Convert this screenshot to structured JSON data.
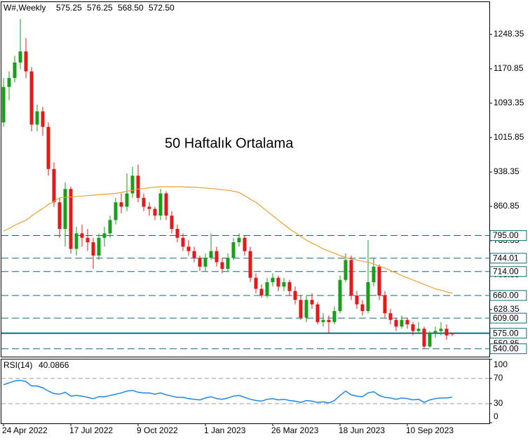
{
  "chart_data": {
    "type": "candlestick",
    "header": {
      "symbol": "W#,Weekly",
      "values": [
        "575.25",
        "576.25",
        "568.50",
        "572.50"
      ]
    },
    "annotation": "50 Haftalık Ortalama",
    "categories": [
      "24 Apr 2022",
      null,
      null,
      null,
      null,
      null,
      null,
      null,
      null,
      null,
      null,
      null,
      "17 Jul 2022",
      null,
      null,
      null,
      null,
      null,
      null,
      null,
      null,
      null,
      null,
      null,
      "9 Oct 2022",
      null,
      null,
      null,
      null,
      null,
      null,
      null,
      null,
      null,
      null,
      null,
      "1 Jan 2023",
      null,
      null,
      null,
      null,
      null,
      null,
      null,
      null,
      null,
      null,
      null,
      "26 Mar 2023",
      null,
      null,
      null,
      null,
      null,
      null,
      null,
      null,
      null,
      null,
      null,
      "18 Jun 2023",
      null,
      null,
      null,
      null,
      null,
      null,
      null,
      null,
      null,
      null,
      null,
      "10 Sep 2023",
      null,
      null,
      null,
      null,
      null,
      null,
      null,
      null
    ],
    "open": [
      1050,
      1130,
      1150,
      1185,
      1210,
      1165,
      1045,
      1075,
      1040,
      945,
      870,
      810,
      900,
      765,
      800,
      790,
      780,
      750,
      790,
      800,
      830,
      870,
      860,
      890,
      930,
      880,
      860,
      855,
      840,
      890,
      840,
      810,
      790,
      770,
      760,
      745,
      725,
      745,
      760,
      735,
      720,
      745,
      780,
      790,
      760,
      700,
      675,
      660,
      690,
      700,
      680,
      690,
      670,
      650,
      610,
      650,
      640,
      600,
      605,
      600,
      625,
      695,
      740,
      660,
      640,
      625,
      690,
      725,
      660,
      620,
      605,
      590,
      605,
      595,
      580,
      585,
      545,
      575,
      580,
      585,
      575.25
    ],
    "high": [
      1150,
      1165,
      1200,
      1283,
      1240,
      1175,
      1090,
      1085,
      1050,
      960,
      880,
      915,
      905,
      815,
      820,
      810,
      790,
      800,
      815,
      840,
      880,
      890,
      935,
      950,
      955,
      890,
      870,
      860,
      900,
      895,
      850,
      820,
      800,
      785,
      770,
      750,
      755,
      800,
      770,
      745,
      755,
      790,
      800,
      795,
      770,
      710,
      685,
      700,
      710,
      705,
      700,
      695,
      680,
      660,
      660,
      665,
      645,
      620,
      615,
      635,
      705,
      755,
      750,
      670,
      650,
      785,
      745,
      730,
      670,
      630,
      610,
      615,
      610,
      600,
      600,
      590,
      580,
      590,
      600,
      595,
      576.25
    ],
    "low": [
      1040,
      1100,
      1140,
      1170,
      1150,
      1030,
      1030,
      1020,
      930,
      860,
      790,
      770,
      755,
      750,
      770,
      760,
      720,
      740,
      770,
      790,
      820,
      845,
      850,
      880,
      870,
      850,
      840,
      830,
      830,
      830,
      800,
      780,
      760,
      750,
      735,
      715,
      715,
      740,
      725,
      710,
      715,
      740,
      770,
      750,
      690,
      665,
      655,
      655,
      680,
      670,
      670,
      660,
      640,
      605,
      600,
      630,
      595,
      590,
      575,
      595,
      620,
      690,
      650,
      630,
      615,
      620,
      680,
      650,
      610,
      595,
      580,
      585,
      585,
      570,
      575,
      540,
      542,
      565,
      570,
      560,
      568.5
    ],
    "close": [
      1130,
      1150,
      1185,
      1210,
      1165,
      1045,
      1075,
      1040,
      945,
      870,
      810,
      900,
      765,
      800,
      790,
      780,
      750,
      790,
      800,
      830,
      870,
      860,
      890,
      930,
      880,
      860,
      855,
      840,
      890,
      840,
      810,
      790,
      770,
      760,
      745,
      725,
      745,
      760,
      735,
      720,
      745,
      780,
      790,
      760,
      700,
      675,
      660,
      690,
      700,
      680,
      690,
      670,
      650,
      610,
      650,
      640,
      600,
      605,
      600,
      625,
      695,
      740,
      660,
      640,
      625,
      690,
      725,
      660,
      620,
      605,
      590,
      605,
      595,
      580,
      585,
      545,
      575,
      580,
      585,
      570,
      572.5
    ],
    "up_color": "#1a9e1a",
    "down_color": "#e31a1a",
    "ma": {
      "color": "#f0a030",
      "values": [
        805,
        811,
        818,
        824,
        830,
        839,
        848,
        856,
        865,
        872,
        880,
        881,
        882,
        883,
        884,
        885,
        886,
        887,
        888,
        889,
        890,
        892,
        895,
        897,
        900,
        901,
        903,
        904,
        905,
        905,
        905,
        905,
        905,
        904,
        904,
        903,
        902,
        901,
        900,
        898,
        897,
        895,
        892,
        885,
        877,
        870,
        860,
        850,
        840,
        830,
        820,
        810,
        802,
        793,
        785,
        778,
        772,
        765,
        760,
        755,
        750,
        746,
        742,
        740,
        737,
        735,
        731,
        726,
        722,
        716,
        711,
        705,
        700,
        695,
        690,
        685,
        680,
        675,
        672,
        668,
        665
      ]
    },
    "ylim": [
      522.2,
      1321.1
    ],
    "yticks": [
      550.85,
      628.35,
      705.85,
      783.35,
      860.85,
      938.35,
      1015.85,
      1093.35,
      1170.85,
      1248.35
    ],
    "level_color": "#0e6d7a",
    "levels": [
      {
        "value": 795,
        "label": "795.00",
        "style": "dashed"
      },
      {
        "value": 744.01,
        "label": "744.01",
        "style": "dashed"
      },
      {
        "value": 714,
        "label": "714.00",
        "style": "dashed"
      },
      {
        "value": 660,
        "label": "660.00",
        "style": "dashed"
      },
      {
        "value": 609,
        "label": "609.00",
        "style": "dashed"
      },
      {
        "value": 575,
        "label": "575.00",
        "style": "solid"
      },
      {
        "value": 540,
        "label": "540.00",
        "style": "dashed"
      }
    ],
    "rsi": {
      "label": "RSI(14)",
      "color": "#1e88e5",
      "ylim": [
        0,
        100
      ],
      "yticks": [
        100,
        70,
        30,
        0
      ],
      "levels": [
        70,
        30
      ],
      "values": [
        60,
        63,
        66,
        67,
        65,
        58,
        58,
        55,
        50,
        46,
        45,
        48,
        42,
        43,
        42,
        40,
        38,
        41,
        41,
        43,
        45,
        47,
        50,
        51,
        48,
        47,
        47,
        45,
        47,
        44,
        42,
        40,
        40,
        38,
        37,
        36,
        39,
        41,
        38,
        37,
        39,
        42,
        43,
        40,
        37,
        35,
        34,
        37,
        38,
        36,
        37,
        35,
        34,
        32,
        35,
        34,
        32,
        33,
        31,
        35,
        43,
        50,
        44,
        42,
        41,
        47,
        49,
        43,
        40,
        39,
        37,
        39,
        38,
        36,
        37,
        32,
        36,
        38,
        39,
        39,
        40.0866
      ]
    }
  }
}
